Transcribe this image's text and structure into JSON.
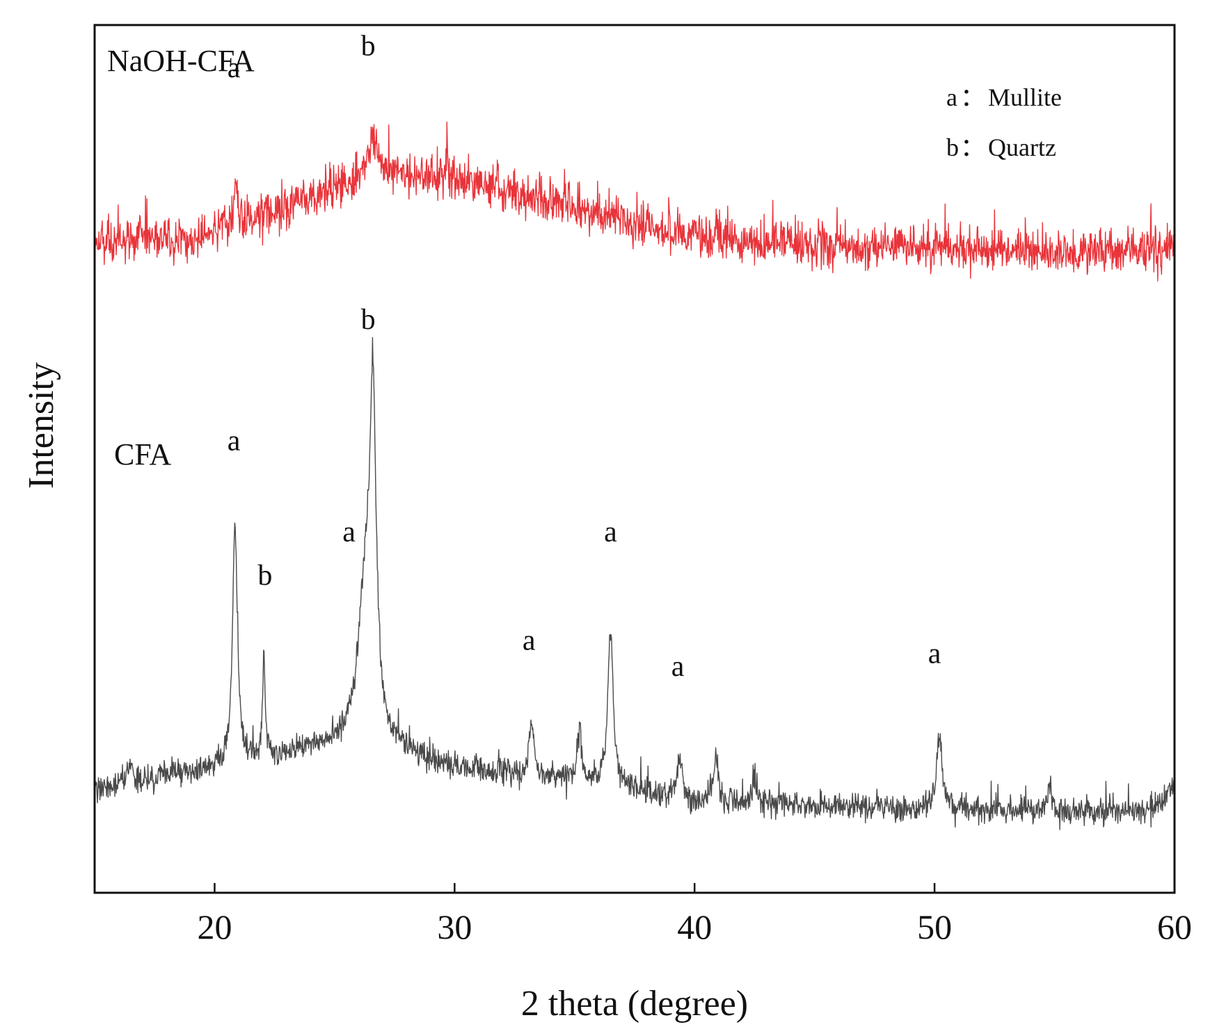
{
  "chart_data": {
    "type": "line",
    "title": "",
    "xlabel": "2 theta (degree)",
    "ylabel": "Intensity",
    "xlim": [
      15,
      60
    ],
    "ylim": [
      0,
      100
    ],
    "xticks": [
      20,
      30,
      40,
      50,
      60
    ],
    "y_tick_labels": false,
    "grid": false,
    "legend": {
      "position": "top-right",
      "entries": [
        {
          "key": "a",
          "separator": "：",
          "name": "Mullite"
        },
        {
          "key": "b",
          "separator": "：",
          "name": "Quartz"
        }
      ]
    },
    "series": [
      {
        "name": "NaOH-CFA",
        "color": "#e8343a",
        "baseline": [
          [
            15,
            75
          ],
          [
            19,
            75.5
          ],
          [
            21,
            77
          ],
          [
            23,
            79
          ],
          [
            25,
            81
          ],
          [
            26,
            82
          ],
          [
            27,
            82
          ],
          [
            29,
            82.3
          ],
          [
            31,
            81.5
          ],
          [
            33,
            80.5
          ],
          [
            35,
            79
          ],
          [
            37,
            77.5
          ],
          [
            39,
            76
          ],
          [
            42,
            75
          ],
          [
            46,
            74.5
          ],
          [
            50,
            74.3
          ],
          [
            55,
            74
          ],
          [
            60,
            74
          ]
        ],
        "noise": 2.5,
        "peaks": [
          {
            "x": 20.9,
            "height": 4,
            "width": 0.08,
            "label": "a"
          },
          {
            "x": 26.6,
            "height": 5.5,
            "width": 0.3,
            "label": "b"
          },
          {
            "x": 29.7,
            "height": 3,
            "width": 0.05,
            "label": ""
          },
          {
            "x": 40.9,
            "height": 2.5,
            "width": 0.05,
            "label": ""
          },
          {
            "x": 50.1,
            "height": 2.5,
            "width": 0.05,
            "label": ""
          }
        ]
      },
      {
        "name": "CFA",
        "color": "#4a4a4a",
        "baseline": [
          [
            15,
            12
          ],
          [
            17,
            13
          ],
          [
            19,
            14
          ],
          [
            21,
            15
          ],
          [
            23,
            16
          ],
          [
            25,
            17
          ],
          [
            26,
            18
          ],
          [
            27,
            16.5
          ],
          [
            30,
            14.5
          ],
          [
            33,
            13.5
          ],
          [
            36,
            12.5
          ],
          [
            38,
            11.5
          ],
          [
            40,
            10.5
          ],
          [
            45,
            10
          ],
          [
            50,
            9.5
          ],
          [
            55,
            9.5
          ],
          [
            59,
            9.5
          ],
          [
            60,
            12
          ]
        ],
        "noise": 1.6,
        "peaks": [
          {
            "x": 20.85,
            "height": 28,
            "width": 0.12,
            "label": "a"
          },
          {
            "x": 22.05,
            "height": 11,
            "width": 0.07,
            "label": "b"
          },
          {
            "x": 26.3,
            "height": 16,
            "width": 0.35,
            "label": "a"
          },
          {
            "x": 26.6,
            "height": 35,
            "width": 0.16,
            "label": "b"
          },
          {
            "x": 33.2,
            "height": 6,
            "width": 0.12,
            "label": "a"
          },
          {
            "x": 35.2,
            "height": 6,
            "width": 0.1,
            "label": ""
          },
          {
            "x": 36.5,
            "height": 18,
            "width": 0.14,
            "label": "a"
          },
          {
            "x": 39.4,
            "height": 5,
            "width": 0.12,
            "label": "a"
          },
          {
            "x": 40.9,
            "height": 5,
            "width": 0.12,
            "label": ""
          },
          {
            "x": 42.5,
            "height": 3,
            "width": 0.12,
            "label": ""
          },
          {
            "x": 50.2,
            "height": 8.5,
            "width": 0.15,
            "label": "a"
          },
          {
            "x": 54.8,
            "height": 3,
            "width": 0.08,
            "label": ""
          },
          {
            "x": 16.5,
            "height": 2,
            "width": 0.1,
            "label": ""
          }
        ]
      }
    ],
    "annotations": [
      {
        "text": "a",
        "x": 20.8,
        "y": 94,
        "series": "NaOH-CFA"
      },
      {
        "text": "b",
        "x": 26.4,
        "y": 96.5,
        "series": "NaOH-CFA"
      },
      {
        "text": "a",
        "x": 20.8,
        "y": 51,
        "series": "CFA"
      },
      {
        "text": "b",
        "x": 22.1,
        "y": 35.5,
        "series": "CFA"
      },
      {
        "text": "a",
        "x": 25.6,
        "y": 40.5,
        "series": "CFA"
      },
      {
        "text": "b",
        "x": 26.4,
        "y": 65,
        "series": "CFA"
      },
      {
        "text": "a",
        "x": 33.1,
        "y": 28,
        "series": "CFA"
      },
      {
        "text": "a",
        "x": 36.5,
        "y": 40.5,
        "series": "CFA"
      },
      {
        "text": "a",
        "x": 39.3,
        "y": 25,
        "series": "CFA"
      },
      {
        "text": "a",
        "x": 50.0,
        "y": 26.5,
        "series": "CFA"
      }
    ]
  }
}
